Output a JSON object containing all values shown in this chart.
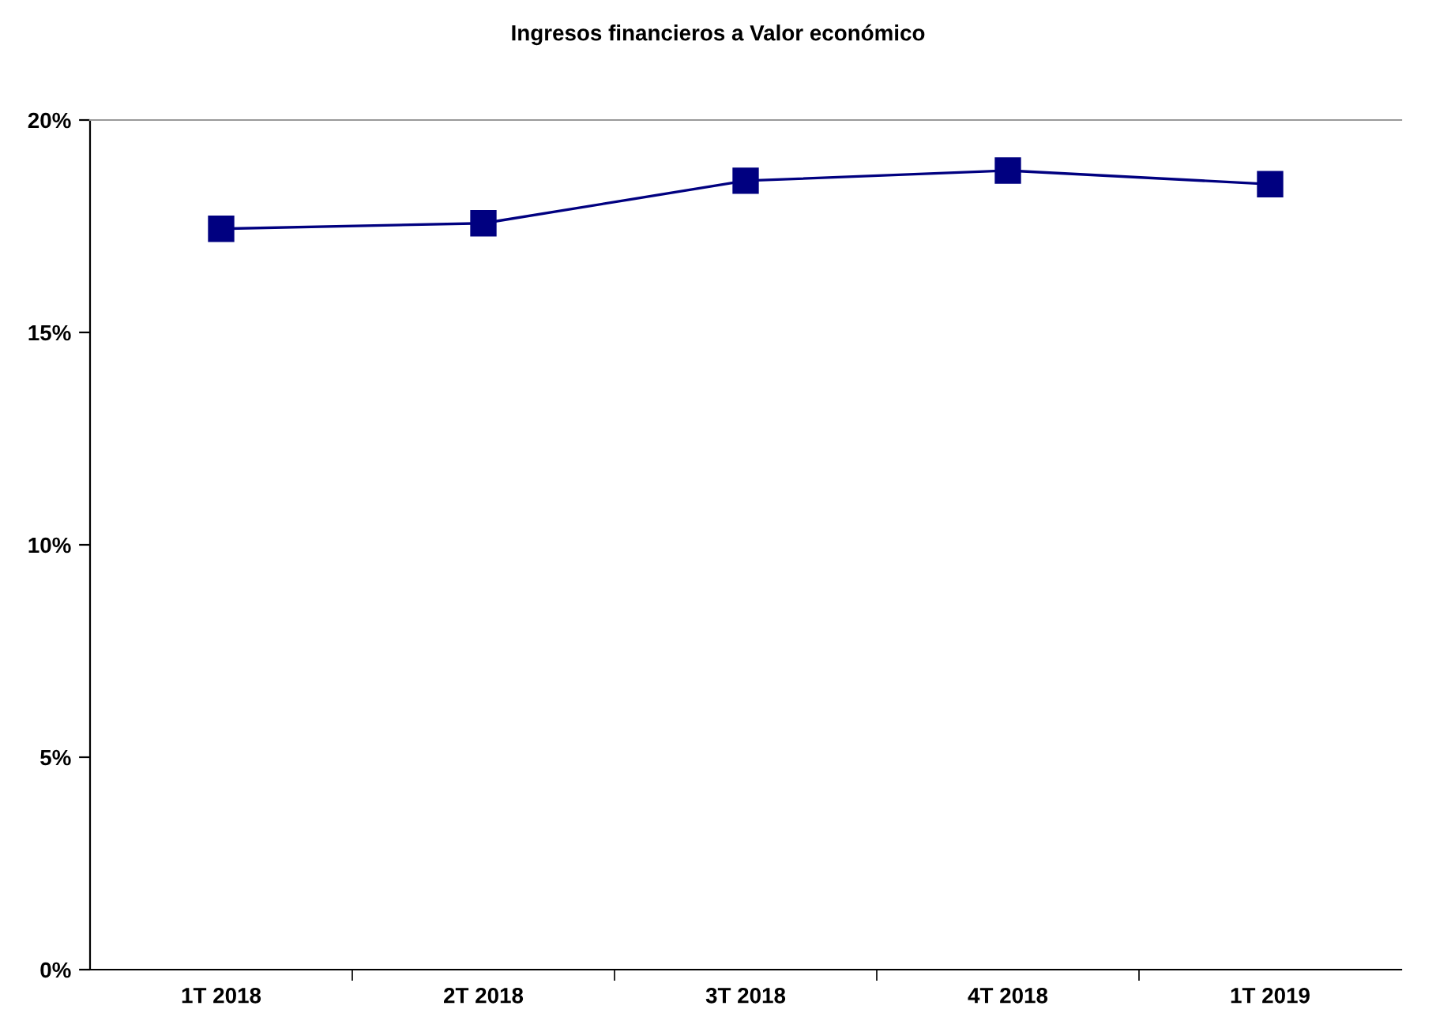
{
  "chart_data": {
    "type": "line",
    "title": "Ingresos financieros a Valor económico",
    "categories": [
      "1T 2018",
      "2T 2018",
      "3T 2018",
      "4T 2018",
      "1T 2019"
    ],
    "series": [
      {
        "color": "#000080",
        "values": [
          17.44,
          17.57,
          18.57,
          18.81,
          18.49
        ]
      }
    ],
    "ylim": [
      0,
      20
    ],
    "yticks": [
      {
        "value": 0,
        "label": "0%"
      },
      {
        "value": 5,
        "label": "5%"
      },
      {
        "value": 10,
        "label": "10%"
      },
      {
        "value": 15,
        "label": "15%"
      },
      {
        "value": 20,
        "label": "20%"
      }
    ],
    "marker": "square",
    "line_style": "solid",
    "grid": false
  }
}
